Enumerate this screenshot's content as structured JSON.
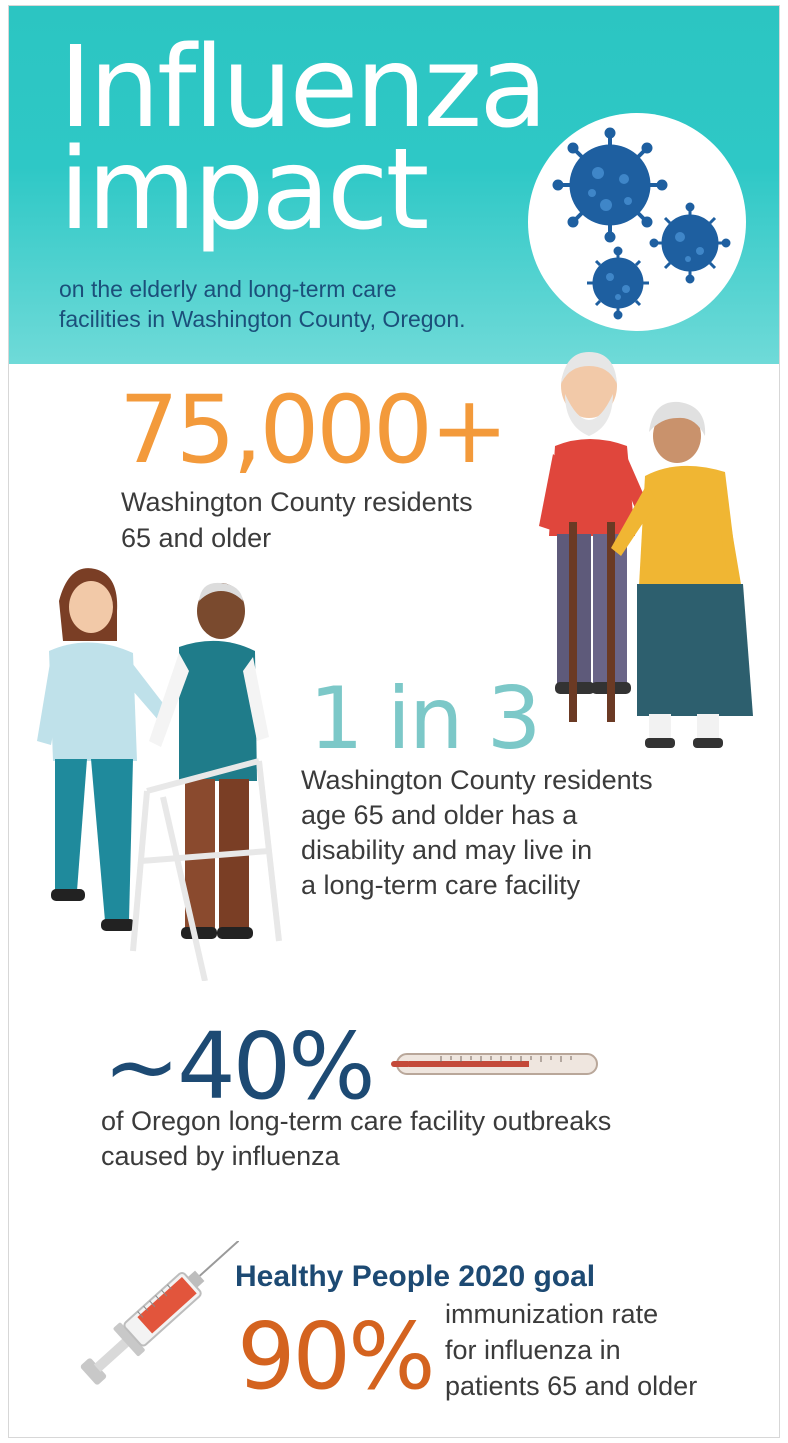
{
  "header": {
    "title_line1": "Influenza",
    "title_line2": "impact",
    "subtitle_line1": "on the elderly and long-term care",
    "subtitle_line2": "facilities in Washington County, Oregon."
  },
  "stats": [
    {
      "value": "75,000+",
      "desc_line1": "Washington County residents",
      "desc_line2": "65 and older"
    },
    {
      "value": "1 in 3",
      "desc_line1": "Washington County residents",
      "desc_line2": "age 65 and older has a",
      "desc_line3": "disability and may live in",
      "desc_line4": "a long-term care facility"
    },
    {
      "value": "~40%",
      "desc_line1": "of Oregon long-term care facility outbreaks",
      "desc_line2": "caused by influenza"
    }
  ],
  "goal": {
    "title": "Healthy People 2020 goal",
    "value": "90%",
    "desc_line1": "immunization rate",
    "desc_line2": "for influenza in",
    "desc_line3": "patients 65 and older"
  },
  "colors": {
    "header_teal": "#2ec8c6",
    "stat1": "#f39a3b",
    "stat2": "#7cc8c8",
    "stat3": "#1d4a73",
    "stat4": "#d4631f",
    "virus": "#1e5fa0"
  },
  "icons": [
    "virus-icon",
    "elderly-couple-illustration",
    "nurse-walker-illustration",
    "thermometer-icon",
    "syringe-icon"
  ]
}
